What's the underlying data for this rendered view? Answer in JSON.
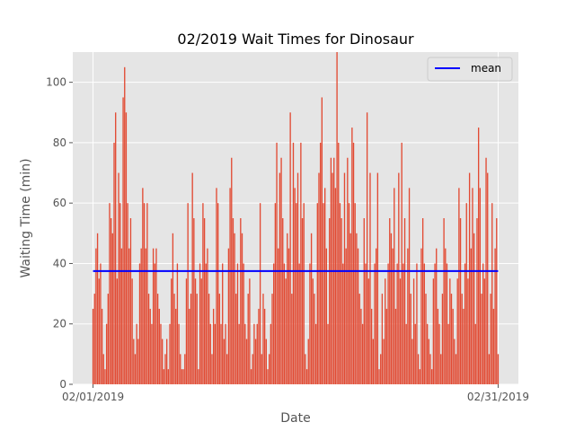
{
  "chart_data": {
    "type": "bar",
    "title": "02/2019 Wait Times for Dinosaur",
    "xlabel": "Date",
    "ylabel": "Waiting Time (min)",
    "x_ticks": [
      "02/01/2019",
      "02/31/2019"
    ],
    "y_ticks": [
      0,
      20,
      40,
      60,
      80,
      100
    ],
    "xlim": [
      -1.5,
      31.5
    ],
    "ylim": [
      0,
      110
    ],
    "grid": true,
    "legend": {
      "position": "top-right",
      "entries": [
        "mean"
      ]
    },
    "colors": {
      "bars": "#E24A33",
      "mean_line": "#0000FF",
      "background": "#E5E5E5",
      "grid": "#FFFFFF"
    },
    "mean": {
      "name": "mean",
      "value": 37.5
    },
    "series": [
      {
        "values": [
          25,
          30,
          45,
          50,
          35,
          40,
          25,
          10,
          5,
          20,
          30,
          60,
          55,
          50,
          80,
          90,
          35,
          70,
          60,
          45,
          95,
          105,
          90,
          60,
          45,
          55,
          35,
          15,
          10,
          20,
          15,
          40,
          45,
          65,
          60,
          45,
          60,
          30,
          25,
          20,
          45,
          40,
          45,
          30,
          25,
          20,
          15,
          5,
          10,
          15,
          5,
          20,
          35,
          50,
          30,
          25,
          40,
          20,
          10,
          5,
          5,
          10,
          35,
          60,
          25,
          30,
          70,
          55,
          35,
          30,
          5,
          40,
          35,
          60,
          55,
          40,
          45,
          30,
          20,
          10,
          25,
          20,
          65,
          60,
          30,
          20,
          40,
          15,
          20,
          10,
          45,
          65,
          75,
          55,
          50,
          30,
          40,
          20,
          55,
          50,
          40,
          20,
          15,
          30,
          35,
          5,
          10,
          20,
          15,
          20,
          25,
          60,
          10,
          30,
          25,
          15,
          5,
          10,
          20,
          30,
          40,
          60,
          80,
          45,
          70,
          75,
          55,
          40,
          35,
          50,
          45,
          90,
          30,
          80,
          65,
          60,
          70,
          40,
          80,
          55,
          60,
          10,
          5,
          15,
          40,
          50,
          35,
          30,
          20,
          60,
          70,
          80,
          95,
          60,
          65,
          45,
          20,
          55,
          75,
          70,
          75,
          65,
          110,
          80,
          60,
          55,
          40,
          70,
          45,
          75,
          60,
          50,
          85,
          80,
          60,
          50,
          45,
          30,
          25,
          20,
          55,
          40,
          90,
          35,
          70,
          25,
          15,
          40,
          45,
          70,
          5,
          10,
          30,
          15,
          35,
          25,
          40,
          55,
          50,
          45,
          65,
          25,
          40,
          70,
          35,
          80,
          40,
          55,
          20,
          45,
          65,
          30,
          15,
          35,
          20,
          40,
          10,
          5,
          45,
          55,
          40,
          30,
          20,
          15,
          10,
          5,
          35,
          40,
          45,
          25,
          20,
          10,
          30,
          55,
          45,
          40,
          20,
          35,
          30,
          25,
          15,
          10,
          35,
          65,
          55,
          30,
          25,
          40,
          60,
          35,
          70,
          45,
          65,
          50,
          20,
          55,
          85,
          65,
          30,
          40,
          35,
          75,
          70,
          10,
          30,
          60,
          25,
          45,
          55,
          10
        ]
      }
    ]
  }
}
